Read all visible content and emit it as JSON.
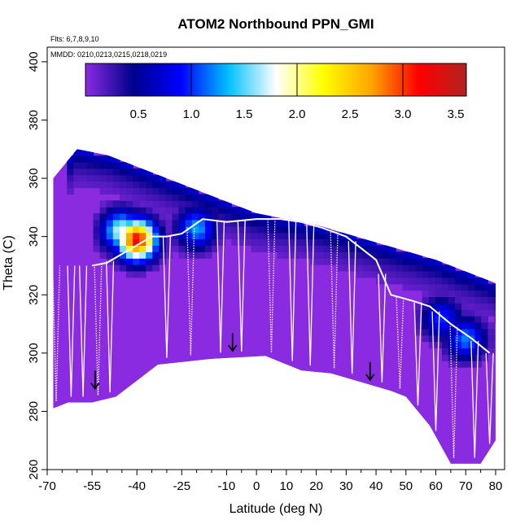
{
  "chart_data": {
    "type": "heatmap",
    "title": "ATOM2 Northbound PPN_GMI",
    "annotations": [
      "Flts: 6,7,8,9,10",
      "MMDD: 0210,0213,0215,0218,0219"
    ],
    "xlabel": "Latitude (deg N)",
    "ylabel": "Theta (C)",
    "xlim": [
      -70,
      83
    ],
    "ylim": [
      260,
      405
    ],
    "x_ticks": [
      -70,
      -55,
      -40,
      -25,
      -10,
      0,
      10,
      20,
      30,
      40,
      50,
      60,
      70,
      80
    ],
    "x_tick_labels": [
      "-70",
      "-55",
      "-40",
      "-25",
      "-10",
      "0",
      "10",
      "20",
      "30",
      "40",
      "50",
      "60",
      "70",
      "80"
    ],
    "y_ticks": [
      260,
      280,
      300,
      320,
      340,
      360,
      380,
      400
    ],
    "y_tick_labels": [
      "260",
      "280",
      "300",
      "320",
      "340",
      "360",
      "380",
      "400"
    ],
    "colorbar": {
      "range": [
        0,
        3.6
      ],
      "ticks": [
        0.5,
        1.0,
        1.5,
        2.0,
        2.5,
        3.0,
        3.5
      ],
      "tick_labels": [
        "0.5",
        "1.0",
        "1.5",
        "2.0",
        "2.5",
        "3.0",
        "3.5"
      ],
      "colors": [
        "#8a2be2",
        "#00008b",
        "#0000ff",
        "#00bfff",
        "#ffffff",
        "#ffff00",
        "#ffa500",
        "#ff0000",
        "#b22222"
      ]
    },
    "surface_boundary": [
      [
        -68,
        281
      ],
      [
        -63,
        283
      ],
      [
        -55,
        283
      ],
      [
        -47,
        285
      ],
      [
        -33,
        296
      ],
      [
        -15,
        298
      ],
      [
        3,
        299
      ],
      [
        15,
        294
      ],
      [
        25,
        293
      ],
      [
        35,
        290
      ],
      [
        45,
        287
      ],
      [
        50,
        285
      ],
      [
        58,
        275
      ],
      [
        65,
        262
      ],
      [
        75,
        262
      ],
      [
        80,
        270
      ]
    ],
    "top_boundary": [
      [
        -68,
        360
      ],
      [
        -60,
        370
      ],
      [
        -50,
        368
      ],
      [
        -40,
        364
      ],
      [
        -20,
        356
      ],
      [
        0,
        348
      ],
      [
        20,
        344
      ],
      [
        40,
        338
      ],
      [
        60,
        332
      ],
      [
        75,
        326
      ],
      [
        80,
        324
      ]
    ],
    "tropopause_trace": [
      [
        -55,
        330
      ],
      [
        -50,
        331
      ],
      [
        -45,
        334
      ],
      [
        -40,
        337
      ],
      [
        -35,
        340
      ],
      [
        -30,
        340
      ],
      [
        -25,
        341
      ],
      [
        -18,
        346
      ],
      [
        -10,
        345
      ],
      [
        0,
        346
      ],
      [
        8,
        346
      ],
      [
        15,
        345
      ],
      [
        22,
        343
      ],
      [
        30,
        340
      ],
      [
        40,
        332
      ],
      [
        45,
        320
      ],
      [
        52,
        318
      ],
      [
        58,
        316
      ],
      [
        65,
        310
      ],
      [
        72,
        305
      ],
      [
        78,
        300
      ]
    ],
    "maxima_regions": [
      {
        "lat": -40,
        "theta": 339,
        "value": 3.2
      },
      {
        "lat": -45,
        "theta": 342,
        "value": 1.8
      },
      {
        "lat": -20,
        "theta": 343,
        "value": 1.3
      },
      {
        "lat": 70,
        "theta": 305,
        "value": 1.2
      },
      {
        "lat": 62,
        "theta": 312,
        "value": 1.0
      }
    ],
    "arrows": [
      {
        "lat": -54,
        "theta": 290
      },
      {
        "lat": -8,
        "theta": 303
      },
      {
        "lat": 38,
        "theta": 293
      }
    ]
  }
}
